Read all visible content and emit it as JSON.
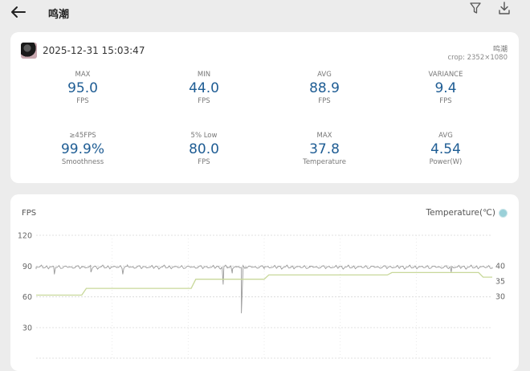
{
  "header": {
    "title": "鸣潮",
    "back_icon": "arrow-left-icon",
    "filter_icon": "filter-icon",
    "download_icon": "download-icon"
  },
  "summary": {
    "timestamp": "2025-12-31 15:03:47",
    "app_name": "鸣潮",
    "crop": "crop: 2352×1080",
    "metrics_row1": [
      {
        "label": "MAX",
        "value": "95.0",
        "unit": "FPS"
      },
      {
        "label": "MIN",
        "value": "44.0",
        "unit": "FPS"
      },
      {
        "label": "AVG",
        "value": "88.9",
        "unit": "FPS"
      },
      {
        "label": "VARIANCE",
        "value": "9.4",
        "unit": "FPS"
      }
    ],
    "metrics_row2": [
      {
        "label": "≥45FPS",
        "value": "99.9%",
        "unit": "Smoothness"
      },
      {
        "label": "5% Low",
        "value": "80.0",
        "unit": "FPS"
      },
      {
        "label": "MAX",
        "value": "37.8",
        "unit": "Temperature"
      },
      {
        "label": "AVG",
        "value": "4.54",
        "unit": "Power(W)"
      }
    ]
  },
  "chart": {
    "y_title": "FPS",
    "legend_label": "Temperature(℃)",
    "colors": {
      "fps": "#9a9a9a",
      "temperature": "#c8d89a",
      "grid": "#d6d6d6",
      "value": "#1f5d94"
    }
  },
  "chart_data": {
    "type": "line",
    "x_range": [
      0,
      100
    ],
    "grid": true,
    "legend": "top-right",
    "y_left": {
      "label": "FPS",
      "ticks": [
        120,
        90,
        60,
        30
      ],
      "ylim": [
        0,
        120
      ]
    },
    "y_right": {
      "label": "Temperature(℃)",
      "ticks": [
        40,
        35,
        30
      ]
    },
    "series": [
      {
        "name": "FPS",
        "axis": "left",
        "baseline": 89,
        "x": [
          0,
          3,
          4,
          10,
          12,
          18,
          19,
          20,
          21,
          40,
          41,
          42,
          43,
          44,
          45,
          46,
          50,
          60,
          90,
          91,
          92,
          100
        ],
        "values": [
          89,
          89,
          82,
          89,
          84,
          89,
          82,
          91,
          89,
          89,
          72,
          89,
          83,
          89,
          44,
          89,
          89,
          89,
          89,
          84,
          89,
          89
        ]
      },
      {
        "name": "Temperature(℃)",
        "axis": "right",
        "x": [
          0,
          10,
          11,
          34,
          35,
          50,
          51,
          77,
          78,
          97,
          98,
          100
        ],
        "values": [
          30.4,
          30.4,
          32.6,
          32.6,
          35.6,
          35.6,
          37.0,
          37.0,
          37.8,
          37.8,
          36.3,
          36.3
        ]
      }
    ]
  }
}
